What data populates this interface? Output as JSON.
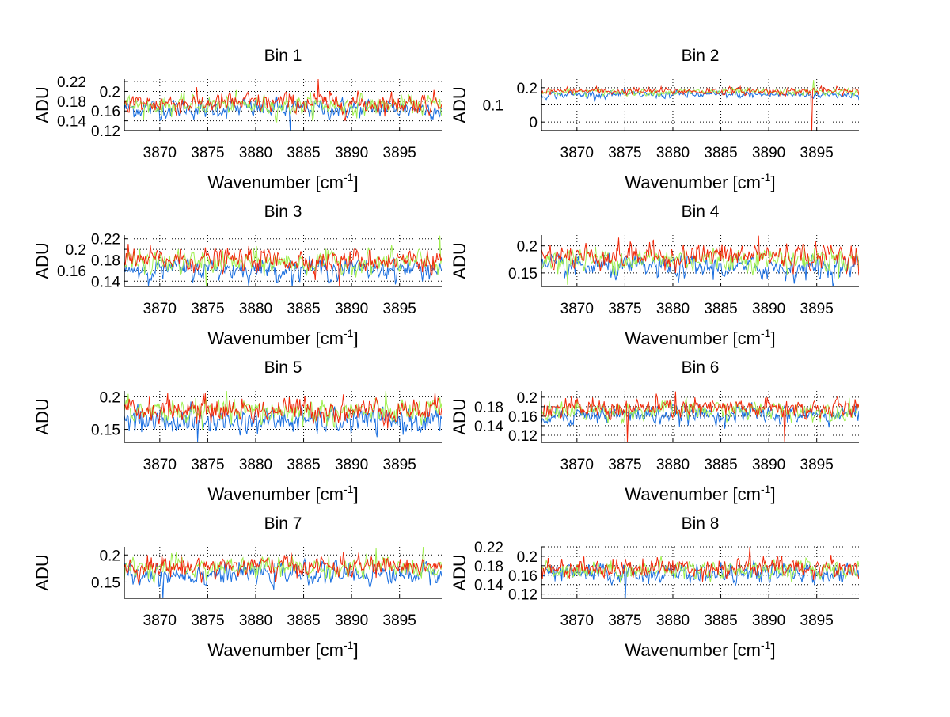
{
  "chart_data": {
    "type": "line",
    "layout": "4x2 subplots",
    "xlabel": {
      "main": "Wavenumber [cm",
      "sup": "-1",
      "close": "]"
    },
    "ylabel": "ADU",
    "xlim": [
      3866.3,
      3899.4
    ],
    "xticks": [
      3870,
      3875,
      3880,
      3885,
      3890,
      3895
    ],
    "grid": true,
    "n_points_per_series": 330,
    "series_colors": {
      "blue": "#1a6fe0",
      "green": "#a0f050",
      "red": "#f0280a"
    },
    "panels": [
      {
        "title": "Bin 1",
        "ylim": [
          0.12,
          0.225
        ],
        "yticks": [
          0.12,
          0.14,
          0.16,
          0.18,
          0.2,
          0.22
        ],
        "series": [
          {
            "name": "blue",
            "mean": 0.165,
            "spread": 0.011
          },
          {
            "name": "green",
            "mean": 0.172,
            "spread": 0.011
          },
          {
            "name": "red",
            "mean": 0.176,
            "spread": 0.012
          }
        ],
        "spikes": [
          {
            "series": "red",
            "x": 3886.5,
            "y": 0.225
          },
          {
            "series": "blue",
            "x": 3883.6,
            "y": 0.12
          }
        ]
      },
      {
        "title": "Bin 2",
        "ylim": [
          -0.05,
          0.25
        ],
        "yticks": [
          0,
          0.1,
          0.2
        ],
        "series": [
          {
            "name": "blue",
            "mean": 0.16,
            "spread": 0.012
          },
          {
            "name": "green",
            "mean": 0.175,
            "spread": 0.011
          },
          {
            "name": "red",
            "mean": 0.18,
            "spread": 0.012
          }
        ],
        "spikes": [
          {
            "series": "red",
            "x": 3894.5,
            "y": -0.1
          },
          {
            "series": "green",
            "x": 3894.7,
            "y": 0.245
          }
        ]
      },
      {
        "title": "Bin 3",
        "ylim": [
          0.13,
          0.227
        ],
        "yticks": [
          0.14,
          0.16,
          0.18,
          0.2,
          0.22
        ],
        "series": [
          {
            "name": "blue",
            "mean": 0.163,
            "spread": 0.011
          },
          {
            "name": "green",
            "mean": 0.175,
            "spread": 0.012
          },
          {
            "name": "red",
            "mean": 0.18,
            "spread": 0.012
          }
        ],
        "spikes": [
          {
            "series": "red",
            "x": 3888.7,
            "y": 0.13
          },
          {
            "series": "green",
            "x": 3899.2,
            "y": 0.226
          },
          {
            "series": "green",
            "x": 3874.9,
            "y": 0.13
          }
        ]
      },
      {
        "title": "Bin 4",
        "ylim": [
          0.125,
          0.22
        ],
        "yticks": [
          0.15,
          0.2
        ],
        "series": [
          {
            "name": "blue",
            "mean": 0.16,
            "spread": 0.012
          },
          {
            "name": "green",
            "mean": 0.176,
            "spread": 0.013
          },
          {
            "name": "red",
            "mean": 0.182,
            "spread": 0.013
          }
        ],
        "spikes": [
          {
            "series": "red",
            "x": 3888.9,
            "y": 0.219
          },
          {
            "series": "green",
            "x": 3869.0,
            "y": 0.128
          }
        ]
      },
      {
        "title": "Bin 5",
        "ylim": [
          0.13,
          0.209
        ],
        "yticks": [
          0.15,
          0.2
        ],
        "series": [
          {
            "name": "blue",
            "mean": 0.163,
            "spread": 0.011
          },
          {
            "name": "green",
            "mean": 0.177,
            "spread": 0.011
          },
          {
            "name": "red",
            "mean": 0.18,
            "spread": 0.011
          }
        ],
        "spikes": [
          {
            "series": "blue",
            "x": 3873.9,
            "y": 0.131
          }
        ]
      },
      {
        "title": "Bin 6",
        "ylim": [
          0.105,
          0.213
        ],
        "yticks": [
          0.12,
          0.14,
          0.16,
          0.18,
          0.2
        ],
        "series": [
          {
            "name": "blue",
            "mean": 0.163,
            "spread": 0.011
          },
          {
            "name": "green",
            "mean": 0.172,
            "spread": 0.011
          },
          {
            "name": "red",
            "mean": 0.176,
            "spread": 0.012
          }
        ],
        "spikes": [
          {
            "series": "red",
            "x": 3875.3,
            "y": 0.105
          },
          {
            "series": "red",
            "x": 3891.7,
            "y": 0.107
          },
          {
            "series": "red",
            "x": 3880.3,
            "y": 0.212
          }
        ]
      },
      {
        "title": "Bin 7",
        "ylim": [
          0.12,
          0.215
        ],
        "yticks": [
          0.15,
          0.2
        ],
        "series": [
          {
            "name": "blue",
            "mean": 0.165,
            "spread": 0.011
          },
          {
            "name": "green",
            "mean": 0.176,
            "spread": 0.011
          },
          {
            "name": "red",
            "mean": 0.179,
            "spread": 0.011
          }
        ],
        "spikes": [
          {
            "series": "blue",
            "x": 3870.3,
            "y": 0.12
          },
          {
            "series": "green",
            "x": 3892.6,
            "y": 0.213
          }
        ]
      },
      {
        "title": "Bin 8",
        "ylim": [
          0.111,
          0.22
        ],
        "yticks": [
          0.12,
          0.14,
          0.16,
          0.18,
          0.2,
          0.22
        ],
        "series": [
          {
            "name": "blue",
            "mean": 0.163,
            "spread": 0.011
          },
          {
            "name": "green",
            "mean": 0.172,
            "spread": 0.011
          },
          {
            "name": "red",
            "mean": 0.176,
            "spread": 0.012
          }
        ],
        "spikes": [
          {
            "series": "red",
            "x": 3888.0,
            "y": 0.222
          },
          {
            "series": "blue",
            "x": 3875.1,
            "y": 0.111
          }
        ]
      }
    ]
  }
}
